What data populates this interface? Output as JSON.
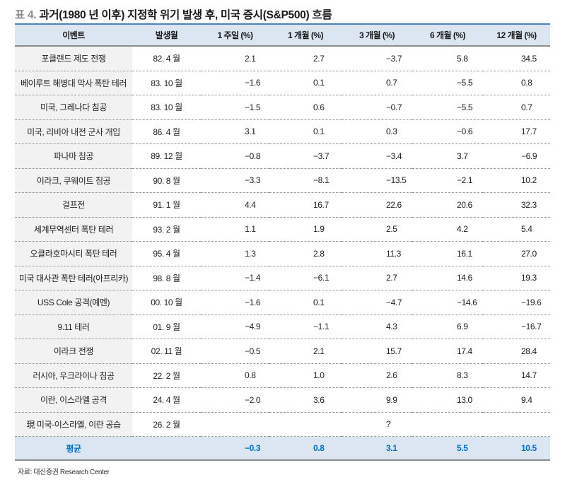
{
  "title": {
    "prefix": "표 4.",
    "text": "과거(1980 년 이후) 지정학 위기 발생 후, 미국 증시(S&P500) 흐름"
  },
  "table": {
    "headers": [
      "이벤트",
      "발생월",
      "1 주일 (%)",
      "1 개월 (%)",
      "3 개월 (%)",
      "6 개월 (%)",
      "12 개월 (%)"
    ],
    "rows": [
      {
        "event": "포클랜드 제도 전쟁",
        "date": "82. 4 월",
        "w1": "2.1",
        "m1": "2.7",
        "m3": "−3.7",
        "m6": "5.8",
        "m12": "34.5"
      },
      {
        "event": "베이루트 해병대 막사 폭탄 테러",
        "date": "83. 10 월",
        "w1": "−1.6",
        "m1": "0.1",
        "m3": "0.7",
        "m6": "−5.5",
        "m12": "0.8"
      },
      {
        "event": "미국, 그레나다 침공",
        "date": "83. 10 월",
        "w1": "−1.5",
        "m1": "0.6",
        "m3": "−0.7",
        "m6": "−5.5",
        "m12": "0.7"
      },
      {
        "event": "미국, 리비아 내전 군사 개입",
        "date": "86. 4 월",
        "w1": "3.1",
        "m1": "0.1",
        "m3": "0.3",
        "m6": "−0.6",
        "m12": "17.7"
      },
      {
        "event": "파나마 침공",
        "date": "89. 12 월",
        "w1": "−0.8",
        "m1": "−3.7",
        "m3": "−3.4",
        "m6": "3.7",
        "m12": "−6.9"
      },
      {
        "event": "이라크, 쿠웨이트 침공",
        "date": "90. 8 월",
        "w1": "−3.3",
        "m1": "−8.1",
        "m3": "−13.5",
        "m6": "−2.1",
        "m12": "10.2"
      },
      {
        "event": "걸프전",
        "date": "91. 1 월",
        "w1": "4.4",
        "m1": "16.7",
        "m3": "22.6",
        "m6": "20.6",
        "m12": "32.3"
      },
      {
        "event": "세계무역센터 폭탄 테러",
        "date": "93. 2 월",
        "w1": "1.1",
        "m1": "1.9",
        "m3": "2.5",
        "m6": "4.2",
        "m12": "5.4"
      },
      {
        "event": "오클라호마시티 폭탄 테러",
        "date": "95. 4 월",
        "w1": "1.3",
        "m1": "2.8",
        "m3": "11.3",
        "m6": "16.1",
        "m12": "27.0"
      },
      {
        "event": "미국 대사관 폭탄 테러(아프리카)",
        "date": "98. 8 월",
        "w1": "−1.4",
        "m1": "−6.1",
        "m3": "2.7",
        "m6": "14.6",
        "m12": "19.3"
      },
      {
        "event": "USS Cole 공격(예멘)",
        "date": "00. 10 월",
        "w1": "−1.6",
        "m1": "0.1",
        "m3": "−4.7",
        "m6": "−14.6",
        "m12": "−19.6"
      },
      {
        "event": "9.11 테러",
        "date": "01. 9 월",
        "w1": "−4.9",
        "m1": "−1.1",
        "m3": "4.3",
        "m6": "6.9",
        "m12": "−16.7"
      },
      {
        "event": "이라크 전쟁",
        "date": "02. 11 월",
        "w1": "−0.5",
        "m1": "2.1",
        "m3": "15.7",
        "m6": "17.4",
        "m12": "28.4"
      },
      {
        "event": "러시아, 우크라이나 침공",
        "date": "22. 2 월",
        "w1": "0.8",
        "m1": "1.0",
        "m3": "2.6",
        "m6": "8.3",
        "m12": "14.7"
      },
      {
        "event": "이란, 이스라엘 공격",
        "date": "24. 4 월",
        "w1": "−2.0",
        "m1": "3.6",
        "m3": "9.9",
        "m6": "13.0",
        "m12": "9.4"
      },
      {
        "event": "現 미국-이스라엘, 이란 공습",
        "date": "26. 2 월",
        "w1": "",
        "m1": "",
        "m3": "?",
        "m6": "",
        "m12": ""
      }
    ],
    "average": {
      "label": "평균",
      "date": "",
      "w1": "−0.3",
      "m1": "0.8",
      "m3": "3.1",
      "m6": "5.5",
      "m12": "10.5"
    }
  },
  "source": "자료: 대신증권 Research Center",
  "colors": {
    "header_bg": "#dce6f2",
    "header_top_border": "#4f81bd",
    "event_col_bg": "#f2f2f2",
    "average_text": "#0070c0"
  }
}
